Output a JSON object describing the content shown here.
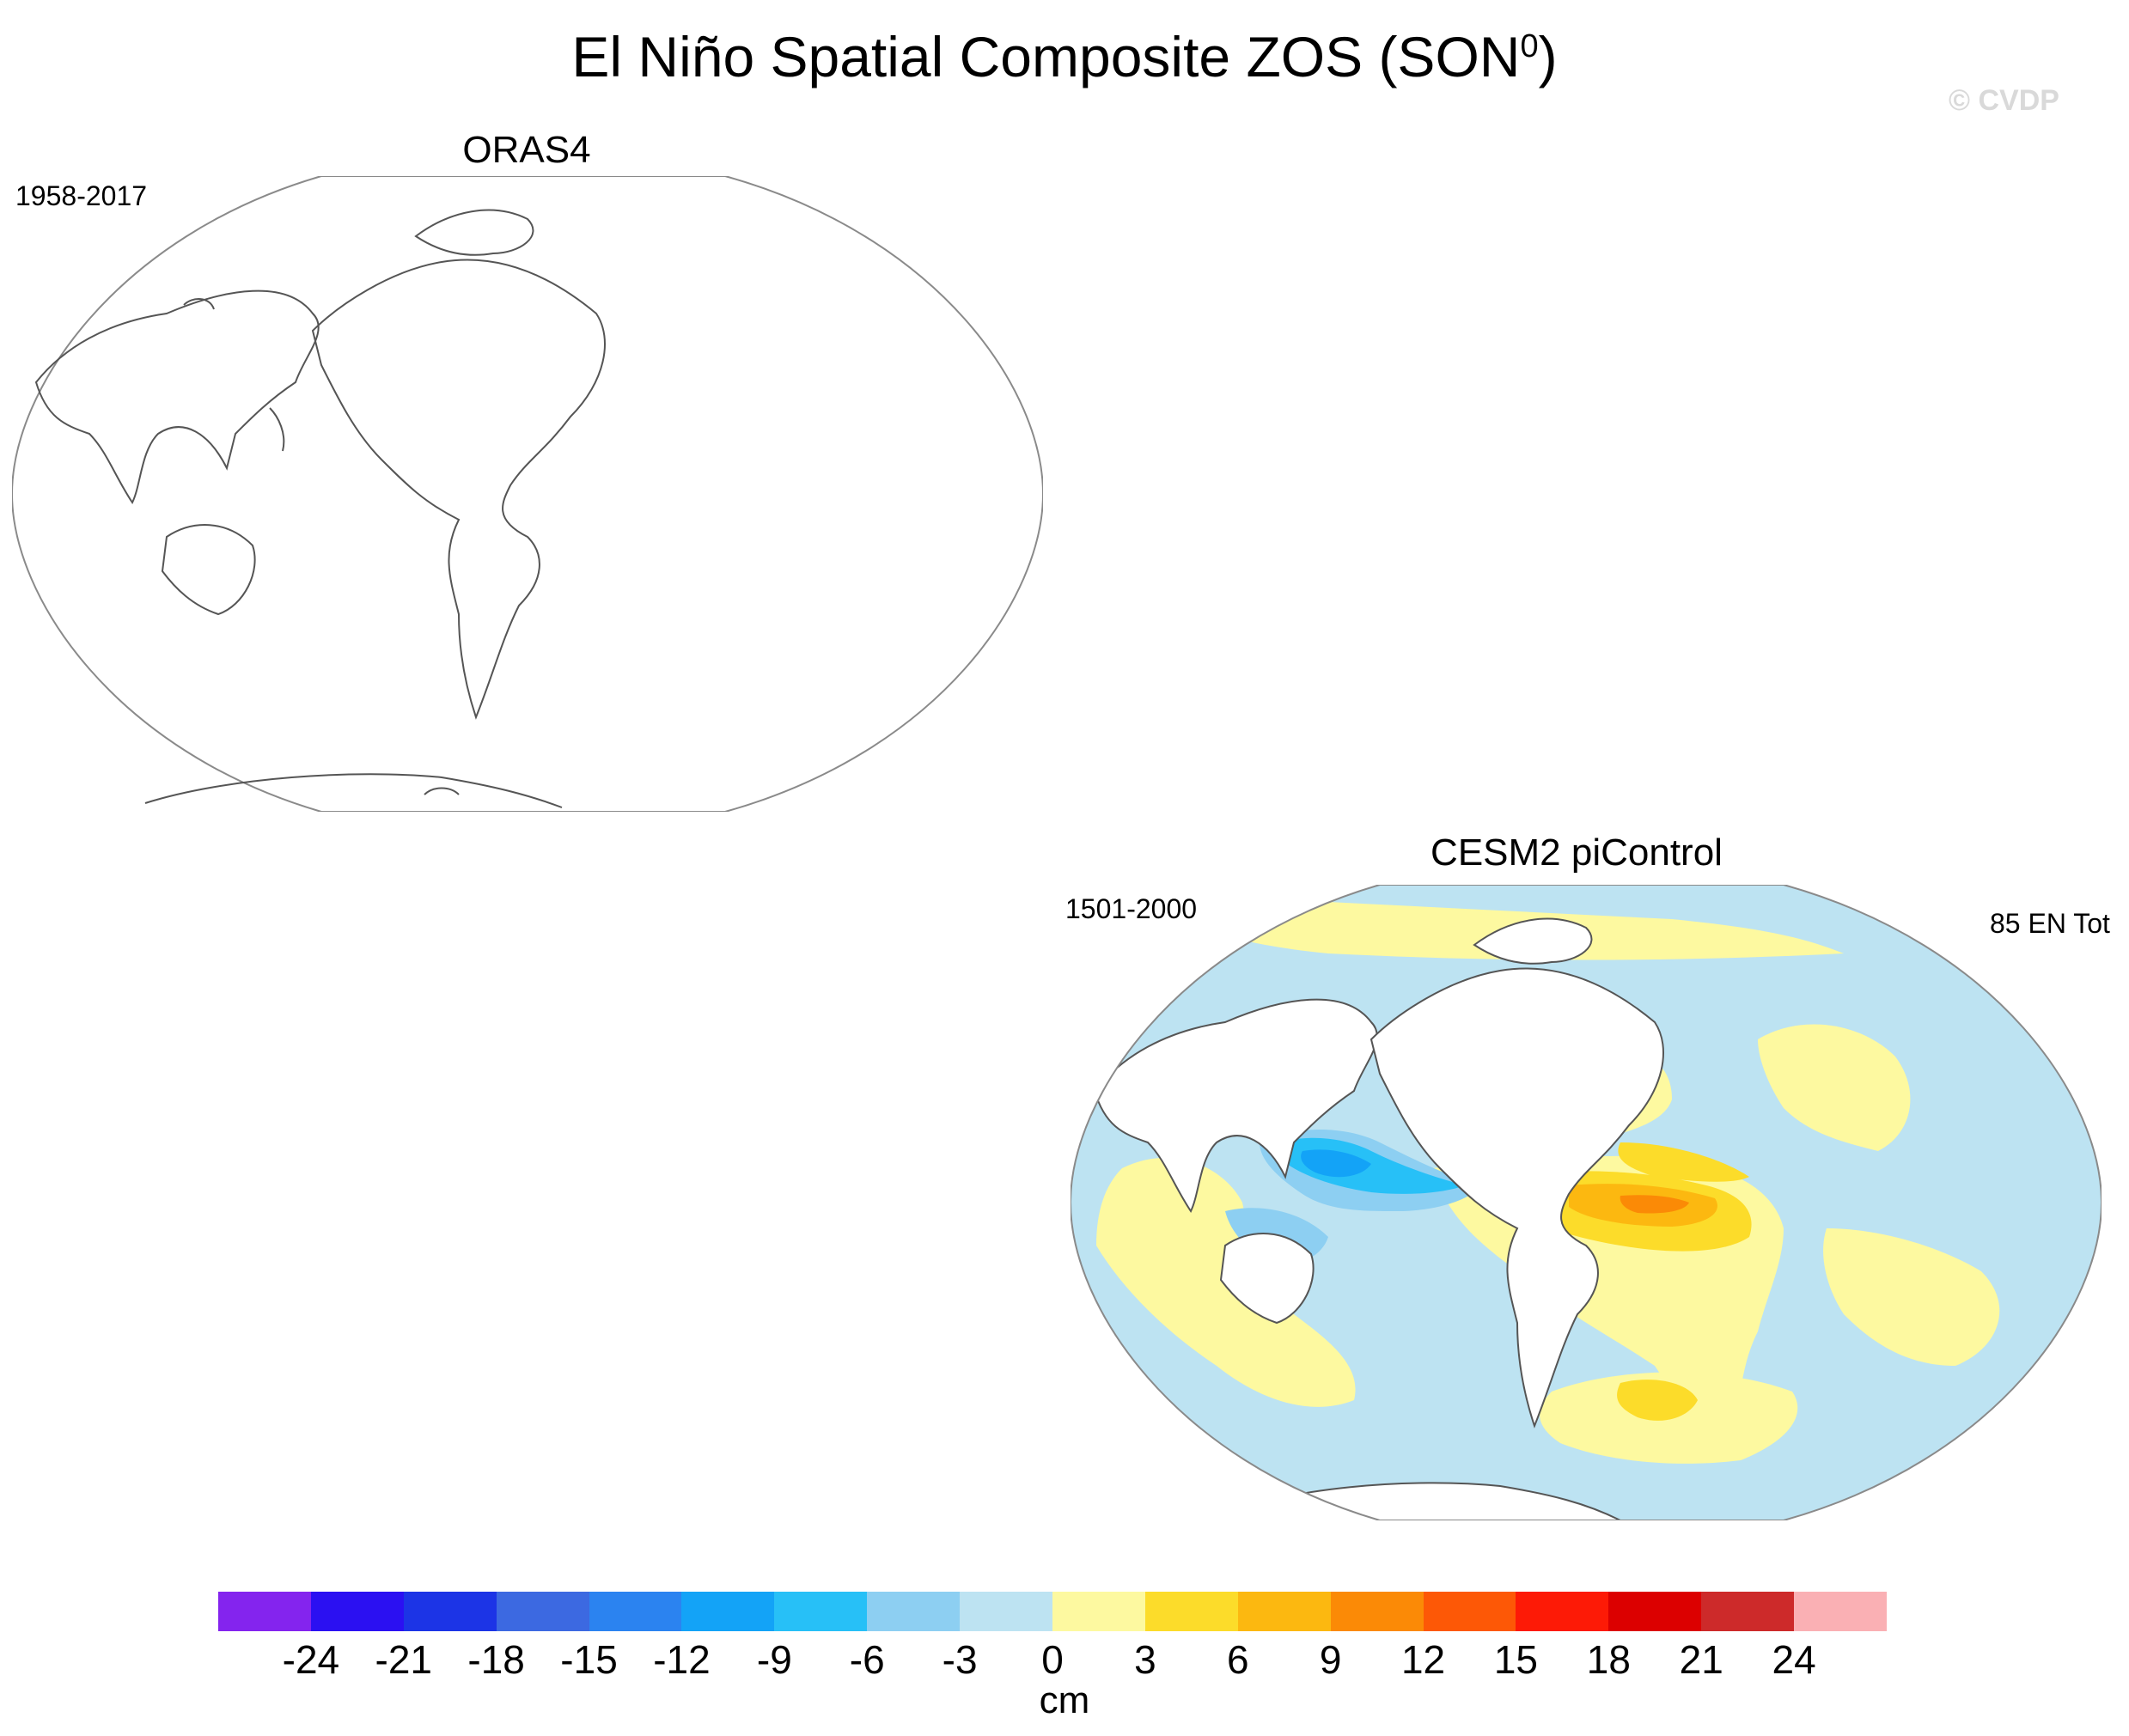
{
  "header": {
    "title_main": "El Niño Spatial Composite ZOS (SON",
    "title_sup": "0",
    "title_close": ")",
    "copyright": "© CVDP"
  },
  "panels": [
    {
      "title": "ORAS4",
      "years": "1958-2017",
      "count": ""
    },
    {
      "title": "CESM2 piControl",
      "years": "1501-2000",
      "count": "85 EN Tot"
    }
  ],
  "colorbar": {
    "levels": [
      "-24",
      "-21",
      "-18",
      "-15",
      "-12",
      "-9",
      "-6",
      "-3",
      "0",
      "3",
      "6",
      "9",
      "12",
      "15",
      "18",
      "21",
      "24"
    ],
    "colors": [
      "#8424ee",
      "#2b10f2",
      "#1c34e6",
      "#3c69e1",
      "#2b83f0",
      "#13a3f7",
      "#27c0f7",
      "#8dcff2",
      "#bde3f2",
      "#fdf9a0",
      "#fcdc2a",
      "#fcb810",
      "#fb8a06",
      "#fd5806",
      "#fd1a06",
      "#dc0000",
      "#cd2a2a",
      "#fab0b4"
    ],
    "units": "cm"
  },
  "map_colors": {
    "ocean_small_negative": "#bde3f2",
    "ocean_small_positive": "#fdf9a0",
    "coastline": "#555555",
    "map_border": "#888888"
  }
}
